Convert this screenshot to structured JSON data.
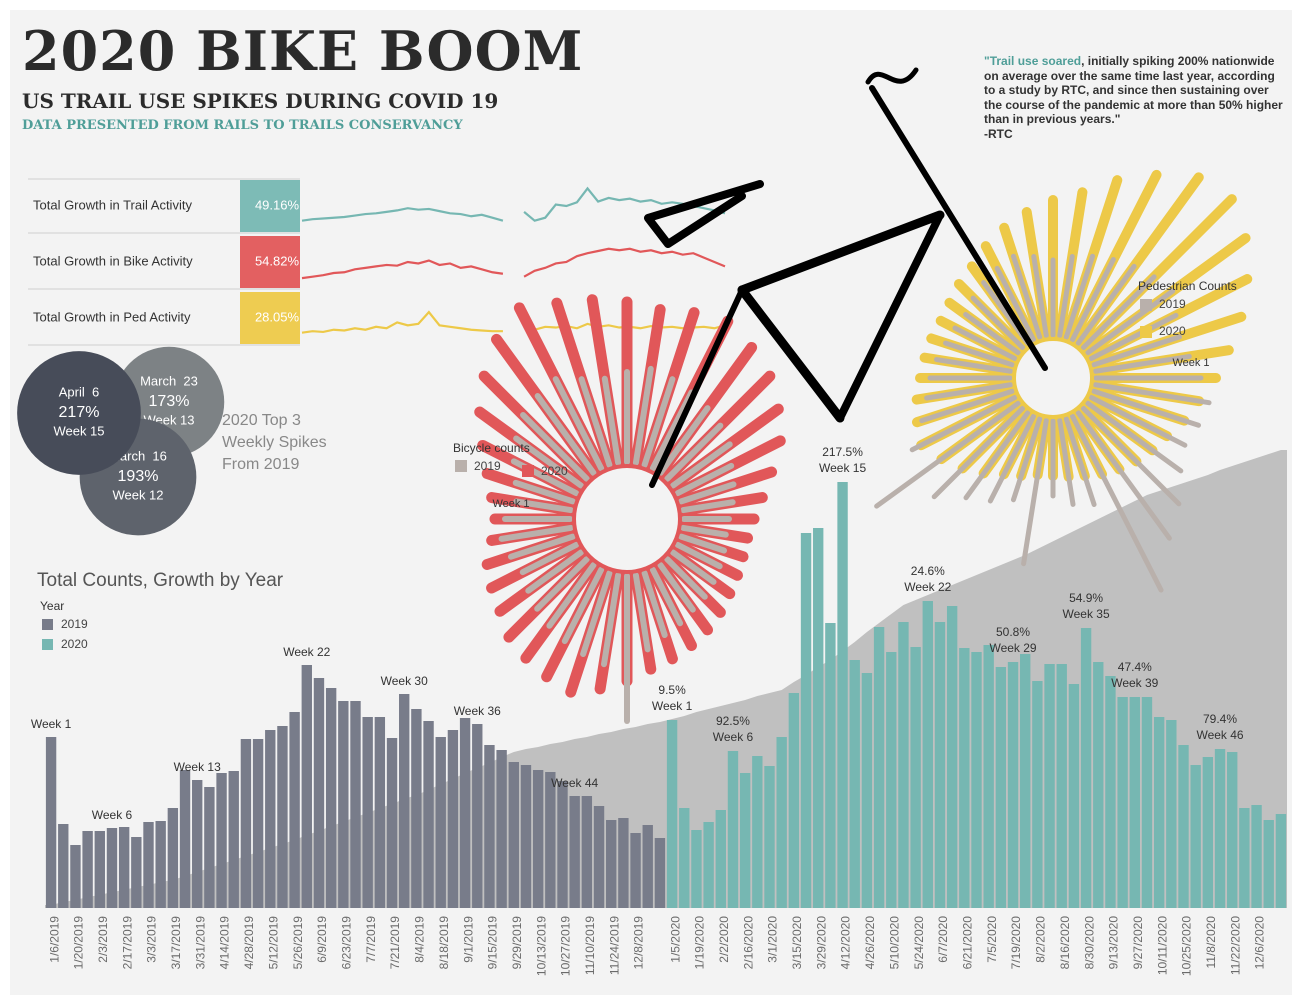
{
  "header": {
    "title": "2020 BIKE BOOM",
    "subtitle": "US TRAIL USE SPIKES DURING COVID 19",
    "source": "DATA PRESENTED FROM RAILS TO TRAILS CONSERVANCY"
  },
  "quote": {
    "highlight": "\"Trail use soared",
    "text": ", initially spiking 200% nationwide on average over the same time last year, according to a study by RTC, and since then sustaining over the course of the pandemic at more than 50% higher than in previous years.\"",
    "attribution": "-RTC"
  },
  "chart_data": [
    {
      "type": "line",
      "label": "Total Growth in Trail Activity",
      "growth": "49.16%",
      "color": "#76b7b2",
      "ylim": [
        0,
        60
      ],
      "values": [
        10,
        12,
        13,
        14,
        15,
        17,
        19,
        20,
        22,
        24,
        27,
        25,
        26,
        23,
        20,
        19,
        16,
        18,
        14,
        10,
        null,
        22,
        10,
        14,
        32,
        30,
        35,
        54,
        36,
        41,
        38,
        40,
        36,
        38,
        33,
        35,
        33,
        30,
        27,
        24,
        20
      ]
    },
    {
      "type": "line",
      "label": "Total Growth in Bike Activity",
      "growth": "54.82%",
      "color": "#e15759",
      "ylim": [
        0,
        60
      ],
      "values": [
        8,
        10,
        12,
        15,
        16,
        20,
        22,
        24,
        26,
        25,
        30,
        28,
        32,
        26,
        28,
        22,
        24,
        20,
        16,
        14,
        null,
        10,
        18,
        22,
        28,
        30,
        38,
        42,
        45,
        48,
        46,
        48,
        44,
        46,
        42,
        44,
        40,
        42,
        36,
        30,
        24
      ]
    },
    {
      "type": "line",
      "label": "Total Growth in Ped Activity",
      "growth": "28.05%",
      "color": "#edc948",
      "ylim": [
        0,
        60
      ],
      "values": [
        10,
        12,
        11,
        14,
        13,
        16,
        14,
        18,
        16,
        24,
        20,
        22,
        38,
        20,
        18,
        16,
        14,
        13,
        12,
        12,
        null,
        20,
        14,
        18,
        17,
        19,
        16,
        22,
        18,
        20,
        17,
        18,
        16,
        19,
        17,
        18,
        16,
        17,
        18,
        16,
        20
      ]
    },
    {
      "type": "bubble",
      "title_lines": [
        "2020 Top 3",
        "Weekly Spikes",
        "From 2019"
      ],
      "categories": [
        "April  6",
        "March  23",
        "March  16"
      ],
      "values": [
        217,
        173,
        193
      ],
      "value_labels": [
        "217%",
        "173%",
        "193%"
      ],
      "weeks": [
        "Week 15",
        "Week 13",
        "Week 12"
      ],
      "colors": [
        "#474c59",
        "#7d8285",
        "#5e636c"
      ]
    },
    {
      "type": "radial-bar",
      "title": "Bicycle counts",
      "start_label": "Week 1",
      "series": [
        {
          "name": "2019",
          "color": "#b9b0ab",
          "values": [
            70,
            60,
            65,
            75,
            85,
            95,
            100,
            105,
            95,
            90,
            95,
            100,
            95,
            90,
            85,
            80,
            75,
            65,
            60,
            55,
            50,
            48,
            50,
            52,
            55,
            58,
            60,
            65,
            70,
            80,
            150,
            95,
            90,
            85,
            80,
            75,
            70,
            65,
            70,
            75
          ]
        },
        {
          "name": "2020",
          "color": "#e15759",
          "values": [
            80,
            85,
            95,
            110,
            130,
            150,
            170,
            185,
            175,
            170,
            165,
            160,
            165,
            170,
            160,
            150,
            135,
            120,
            100,
            85,
            75,
            70,
            70,
            72,
            75,
            80,
            85,
            90,
            95,
            100,
            110,
            120,
            130,
            125,
            120,
            115,
            105,
            100,
            95,
            85
          ]
        }
      ]
    },
    {
      "type": "radial-bar",
      "title": "Pedestrian Counts",
      "start_label": "Week 1",
      "series": [
        {
          "name": "2019",
          "color": "#b9b0ab",
          "values": [
            110,
            100,
            95,
            100,
            110,
            105,
            100,
            95,
            90,
            85,
            80,
            85,
            90,
            85,
            80,
            75,
            70,
            72,
            75,
            80,
            85,
            90,
            100,
            120,
            180,
            130,
            110,
            100,
            90,
            150,
            80,
            90,
            95,
            200,
            160,
            140,
            120,
            110,
            115,
            120
          ]
        },
        {
          "name": "2020",
          "color": "#edc948",
          "values": [
            125,
            140,
            160,
            180,
            200,
            215,
            210,
            190,
            170,
            150,
            140,
            130,
            120,
            110,
            100,
            95,
            90,
            88,
            90,
            92,
            95,
            100,
            105,
            110,
            100,
            90,
            80,
            70,
            65,
            60,
            60,
            62,
            65,
            70,
            75,
            80,
            85,
            90,
            100,
            110
          ]
        }
      ]
    },
    {
      "type": "bar",
      "title": "Total Counts, Growth by Year",
      "legend_title": "Year",
      "ylim": [
        0,
        460
      ],
      "categories": [
        "1/6/2019",
        null,
        "1/20/2019",
        null,
        "2/3/2019",
        null,
        "2/17/2019",
        null,
        "3/3/2019",
        null,
        "3/17/2019",
        null,
        "3/31/2019",
        null,
        "4/14/2019",
        null,
        "4/28/2019",
        null,
        "5/12/2019",
        null,
        "5/26/2019",
        null,
        "6/9/2019",
        null,
        "6/23/2019",
        null,
        "7/7/2019",
        null,
        "7/21/2019",
        null,
        "8/4/2019",
        null,
        "8/18/2019",
        null,
        "9/1/2019",
        null,
        "9/15/2019",
        null,
        "9/29/2019",
        null,
        "10/13/2019",
        null,
        "10/27/2019",
        null,
        "11/10/2019",
        null,
        "11/24/2019",
        null,
        "12/8/2019",
        null,
        null,
        "1/5/2020",
        null,
        "1/19/2020",
        null,
        "2/2/2020",
        null,
        "2/16/2020",
        null,
        "3/1/2020",
        null,
        "3/15/2020",
        null,
        "3/29/2020",
        null,
        "4/12/2020",
        null,
        "4/26/2020",
        null,
        "5/10/2020",
        null,
        "5/24/2020",
        null,
        "6/7/2020",
        null,
        "6/21/2020",
        null,
        "7/5/2020",
        null,
        "7/19/2020",
        null,
        "8/2/2020",
        null,
        "8/16/2020",
        null,
        "8/30/2020",
        null,
        "9/13/2020",
        null,
        "9/27/2020",
        null,
        "10/11/2020",
        null,
        "10/25/2020",
        null,
        "11/8/2020",
        null,
        "11/22/2020",
        null,
        "12/6/2020",
        null,
        null
      ],
      "area": {
        "color": "#c0c0c0",
        "values": [
          3,
          6,
          8,
          11,
          13,
          16,
          18,
          21,
          23,
          26,
          28,
          32,
          36,
          40,
          44,
          48,
          52,
          56,
          60,
          64,
          68,
          73,
          77,
          82,
          86,
          91,
          95,
          100,
          104,
          109,
          113,
          118,
          124,
          129,
          135,
          140,
          145,
          151,
          156,
          159,
          161,
          164,
          166,
          169,
          171,
          174,
          176,
          179,
          181,
          184,
          186,
          189,
          192,
          196,
          199,
          202,
          205,
          208,
          212,
          215,
          218,
          226,
          233,
          241,
          248,
          257,
          266,
          276,
          285,
          294,
          303,
          308,
          313,
          318,
          323,
          328,
          333,
          338,
          343,
          348,
          353,
          359,
          365,
          371,
          377,
          383,
          389,
          395,
          401,
          407,
          413,
          417,
          421,
          425,
          429,
          433,
          438,
          442,
          446,
          450,
          454,
          458
        ]
      },
      "series": [
        {
          "name": "2019",
          "color": "#787c8a",
          "values": [
            171,
            84,
            63,
            77,
            77,
            80,
            81,
            71,
            86,
            87,
            100,
            138,
            128,
            121,
            135,
            137,
            169,
            169,
            178,
            182,
            196,
            243,
            230,
            220,
            207,
            207,
            191,
            191,
            170,
            214,
            199,
            187,
            171,
            178,
            190,
            184,
            163,
            158,
            146,
            143,
            138,
            136,
            127,
            112,
            112,
            102,
            88,
            90,
            75,
            83,
            70,
            null,
            null,
            null,
            null,
            null,
            null,
            null,
            null,
            null,
            null,
            null,
            null,
            null,
            null,
            null,
            null,
            null,
            null,
            null,
            null,
            null,
            null,
            null,
            null,
            null,
            null,
            null,
            null,
            null,
            null,
            null,
            null,
            null,
            null,
            null,
            null,
            null,
            null,
            null,
            null,
            null,
            null,
            null,
            null,
            null,
            null,
            null,
            null,
            null,
            null,
            null
          ],
          "annotations": [
            "Week 1",
            null,
            null,
            null,
            null,
            "Week 6",
            null,
            null,
            null,
            null,
            null,
            null,
            "Week 13",
            null,
            null,
            null,
            null,
            null,
            null,
            null,
            null,
            "Week 22",
            null,
            null,
            null,
            null,
            null,
            null,
            null,
            "Week 30",
            null,
            null,
            null,
            null,
            null,
            "Week 36",
            null,
            null,
            null,
            null,
            null,
            null,
            null,
            "Week 44",
            null,
            null,
            null,
            null,
            null,
            null,
            null,
            null,
            null,
            null,
            null,
            null,
            null,
            null,
            null,
            null,
            null,
            null,
            null,
            null,
            null,
            null,
            null,
            null,
            null,
            null,
            null,
            null,
            null,
            null,
            null,
            null,
            null,
            null,
            null,
            null,
            null,
            null,
            null,
            null,
            null,
            null,
            null,
            null,
            null,
            null,
            null,
            null,
            null,
            null,
            null,
            null,
            null,
            null,
            null,
            null,
            null,
            null
          ]
        },
        {
          "name": "2020",
          "color": "#76b7b2",
          "values": [
            null,
            null,
            null,
            null,
            null,
            null,
            null,
            null,
            null,
            null,
            null,
            null,
            null,
            null,
            null,
            null,
            null,
            null,
            null,
            null,
            null,
            null,
            null,
            null,
            null,
            null,
            null,
            null,
            null,
            null,
            null,
            null,
            null,
            null,
            null,
            null,
            null,
            null,
            null,
            null,
            null,
            null,
            null,
            null,
            null,
            null,
            null,
            null,
            null,
            null,
            null,
            188,
            100,
            78,
            86,
            98,
            157,
            135,
            152,
            142,
            171,
            215,
            375,
            380,
            285,
            426,
            248,
            235,
            281,
            256,
            286,
            261,
            307,
            286,
            302,
            260,
            256,
            263,
            241,
            246,
            254,
            227,
            244,
            244,
            224,
            280,
            246,
            232,
            211,
            211,
            211,
            191,
            188,
            163,
            143,
            151,
            159,
            156,
            100,
            103,
            88,
            94
          ],
          "annotations": [
            null,
            null,
            null,
            null,
            null,
            null,
            null,
            null,
            null,
            null,
            null,
            null,
            null,
            null,
            null,
            null,
            null,
            null,
            null,
            null,
            null,
            null,
            null,
            null,
            null,
            null,
            null,
            null,
            null,
            null,
            null,
            null,
            null,
            null,
            null,
            null,
            null,
            null,
            null,
            null,
            null,
            null,
            null,
            null,
            null,
            null,
            null,
            null,
            null,
            null,
            null,
            "Week 1",
            null,
            null,
            null,
            null,
            "Week 6",
            null,
            null,
            null,
            null,
            null,
            null,
            null,
            null,
            "Week 15",
            null,
            null,
            null,
            null,
            null,
            null,
            "Week 22",
            null,
            null,
            null,
            null,
            null,
            null,
            "Week 29",
            null,
            null,
            null,
            null,
            null,
            "Week 35",
            null,
            null,
            null,
            "Week 39",
            null,
            null,
            null,
            null,
            null,
            null,
            "Week 46",
            null,
            null,
            null,
            null,
            null
          ],
          "growth_labels": [
            null,
            null,
            null,
            null,
            null,
            null,
            null,
            null,
            null,
            null,
            null,
            null,
            null,
            null,
            null,
            null,
            null,
            null,
            null,
            null,
            null,
            null,
            null,
            null,
            null,
            null,
            null,
            null,
            null,
            null,
            null,
            null,
            null,
            null,
            null,
            null,
            null,
            null,
            null,
            null,
            null,
            null,
            null,
            null,
            null,
            null,
            null,
            null,
            null,
            null,
            null,
            "9.5%",
            null,
            null,
            null,
            null,
            "92.5%",
            null,
            null,
            null,
            null,
            null,
            null,
            null,
            null,
            "217.5%",
            null,
            null,
            null,
            null,
            null,
            null,
            "24.6%",
            null,
            null,
            null,
            null,
            null,
            null,
            "50.8%",
            null,
            null,
            null,
            null,
            null,
            "54.9%",
            null,
            null,
            null,
            "47.4%",
            null,
            null,
            null,
            null,
            null,
            null,
            "79.4%",
            null,
            null,
            null,
            null,
            null
          ]
        }
      ]
    }
  ]
}
